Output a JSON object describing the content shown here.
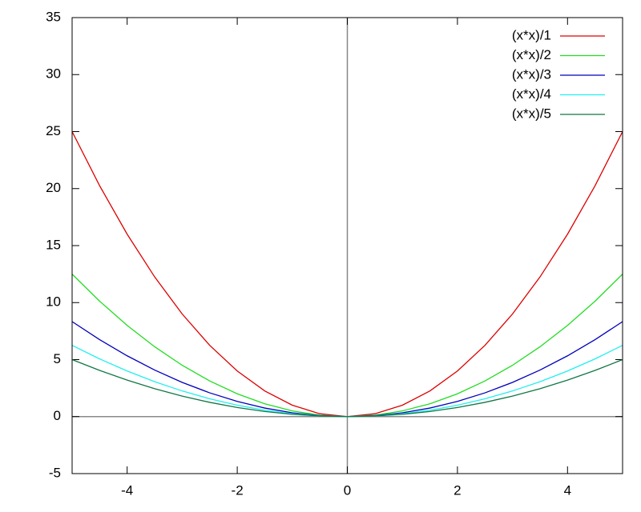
{
  "chart_data": {
    "type": "line",
    "x": [
      -5,
      -4.5,
      -4,
      -3.5,
      -3,
      -2.5,
      -2,
      -1.5,
      -1,
      -0.5,
      0,
      0.5,
      1,
      1.5,
      2,
      2.5,
      3,
      3.5,
      4,
      4.5,
      5
    ],
    "series": [
      {
        "name": "(x*x)/1",
        "color": "#dd0000",
        "values": [
          25,
          20.25,
          16,
          12.25,
          9,
          6.25,
          4,
          2.25,
          1,
          0.25,
          0,
          0.25,
          1,
          2.25,
          4,
          6.25,
          9,
          12.25,
          16,
          20.25,
          25
        ]
      },
      {
        "name": "(x*x)/2",
        "color": "#22dd22",
        "values": [
          12.5,
          10.125,
          8,
          6.125,
          4.5,
          3.125,
          2,
          1.125,
          0.5,
          0.125,
          0,
          0.125,
          0.5,
          1.125,
          2,
          3.125,
          4.5,
          6.125,
          8,
          10.125,
          12.5
        ]
      },
      {
        "name": "(x*x)/3",
        "color": "#0000bb",
        "values": [
          8.333,
          6.75,
          5.333,
          4.083,
          3,
          2.083,
          1.333,
          0.75,
          0.333,
          0.083,
          0,
          0.083,
          0.333,
          0.75,
          1.333,
          2.083,
          3,
          4.083,
          5.333,
          6.75,
          8.333
        ]
      },
      {
        "name": "(x*x)/4",
        "color": "#22eeee",
        "values": [
          6.25,
          5.0625,
          4,
          3.0625,
          2.25,
          1.5625,
          1,
          0.5625,
          0.25,
          0.0625,
          0,
          0.0625,
          0.25,
          0.5625,
          1,
          1.5625,
          2.25,
          3.0625,
          4,
          5.0625,
          6.25
        ]
      },
      {
        "name": "(x*x)/5",
        "color": "#117744",
        "values": [
          5,
          4.05,
          3.2,
          2.45,
          1.8,
          1.25,
          0.8,
          0.45,
          0.2,
          0.05,
          0,
          0.05,
          0.2,
          0.45,
          0.8,
          1.25,
          1.8,
          2.45,
          3.2,
          4.05,
          5
        ]
      }
    ],
    "xlim": [
      -5,
      5
    ],
    "xticks": [
      -4,
      -2,
      0,
      2,
      4
    ],
    "ylim": [
      -5,
      35
    ],
    "yticks": [
      -5,
      0,
      5,
      10,
      15,
      20,
      25,
      30,
      35
    ],
    "legend": "top-right"
  }
}
